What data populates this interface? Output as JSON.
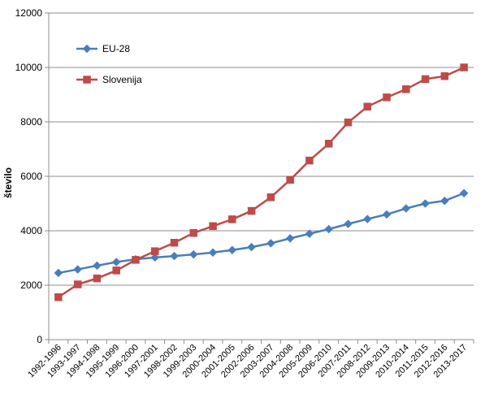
{
  "chart_data": {
    "type": "line",
    "title": "",
    "xlabel": "",
    "ylabel": "število",
    "ylim": [
      0,
      12000
    ],
    "yticks": [
      0,
      2000,
      4000,
      6000,
      8000,
      10000,
      12000
    ],
    "grid": true,
    "legend_position": "top-left",
    "categories": [
      "1992-1996",
      "1993-1997",
      "1994-1998",
      "1995-1999",
      "1996-2000",
      "1997-2001",
      "1998-2002",
      "1999-2003",
      "2000-2004",
      "2001-2005",
      "2002-2006",
      "2003-2007",
      "2004-2008",
      "2005-2009",
      "2006-2010",
      "2007-2011",
      "2008-2012",
      "2009-2013",
      "2010-2014",
      "2011-2015",
      "2012-2016",
      "2013-2017"
    ],
    "series": [
      {
        "name": "EU-28",
        "color": "#4a7ebb",
        "marker": "diamond",
        "values": [
          2450,
          2580,
          2720,
          2850,
          2950,
          3020,
          3070,
          3130,
          3200,
          3290,
          3400,
          3540,
          3720,
          3890,
          4060,
          4250,
          4430,
          4600,
          4820,
          5000,
          5100,
          5380
        ]
      },
      {
        "name": "Slovenija",
        "color": "#be4b48",
        "marker": "square",
        "values": [
          1560,
          2030,
          2250,
          2540,
          2930,
          3250,
          3560,
          3920,
          4170,
          4420,
          4730,
          5230,
          5870,
          6580,
          7200,
          7980,
          8560,
          8900,
          9200,
          9570,
          9680,
          10000
        ]
      }
    ]
  }
}
